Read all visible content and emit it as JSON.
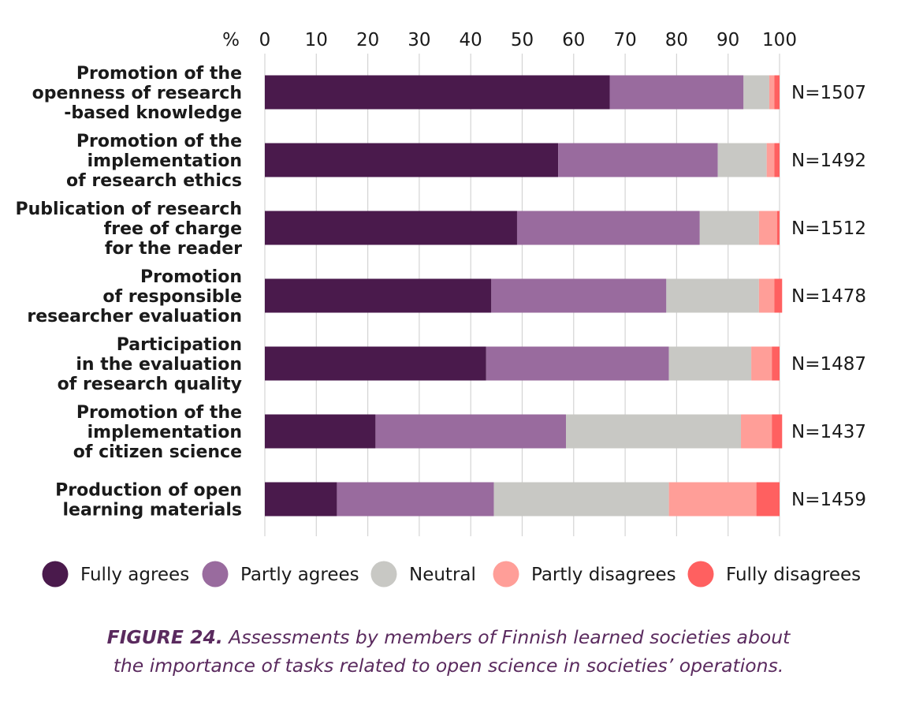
{
  "chart_data": {
    "type": "bar",
    "orientation": "horizontal",
    "stacked": true,
    "unit_label": "%",
    "xlim": [
      0,
      100
    ],
    "x_ticks": [
      0,
      10,
      20,
      30,
      40,
      50,
      60,
      70,
      80,
      90,
      100
    ],
    "grid": true,
    "legend_position": "bottom",
    "categories": [
      [
        "Promotion of the",
        "openness of research",
        "-based knowledge"
      ],
      [
        "Promotion of the",
        "implementation",
        "of research ethics"
      ],
      [
        "Publication of research",
        "free of charge",
        "for the reader"
      ],
      [
        "Promotion",
        "of responsible",
        "researcher evaluation"
      ],
      [
        "Participation",
        "in the evaluation",
        "of research quality"
      ],
      [
        "Promotion of the",
        "implementation",
        "of citizen science"
      ],
      [
        "Production of open",
        "learning materials"
      ]
    ],
    "n_labels": [
      "N=1507",
      "N=1492",
      "N=1512",
      "N=1478",
      "N=1487",
      "N=1437",
      "N=1459"
    ],
    "series": [
      {
        "name": "Fully agrees",
        "color": "#4a1a4c",
        "values": [
          67,
          57,
          49,
          44,
          43,
          21.5,
          14
        ]
      },
      {
        "name": "Partly agrees",
        "color": "#996b9e",
        "values": [
          26,
          31,
          35.5,
          34,
          35.5,
          37,
          30.5
        ]
      },
      {
        "name": "Neutral",
        "color": "#c8c8c4",
        "values": [
          5,
          9.5,
          11.5,
          18,
          16,
          34,
          34
        ]
      },
      {
        "name": "Partly disagrees",
        "color": "#ff9e98",
        "values": [
          1,
          1.5,
          3.5,
          3,
          4,
          6,
          17
        ]
      },
      {
        "name": "Fully disagrees",
        "color": "#ff6060",
        "values": [
          1,
          1,
          0.5,
          1.5,
          1.5,
          2,
          4.5
        ]
      }
    ]
  },
  "caption": {
    "figure_label": "FIGURE 24.",
    "text": " Assessments by members of Finnish learned societies about",
    "text_line2": "the importance of tasks related to open science in societies’ operations."
  }
}
